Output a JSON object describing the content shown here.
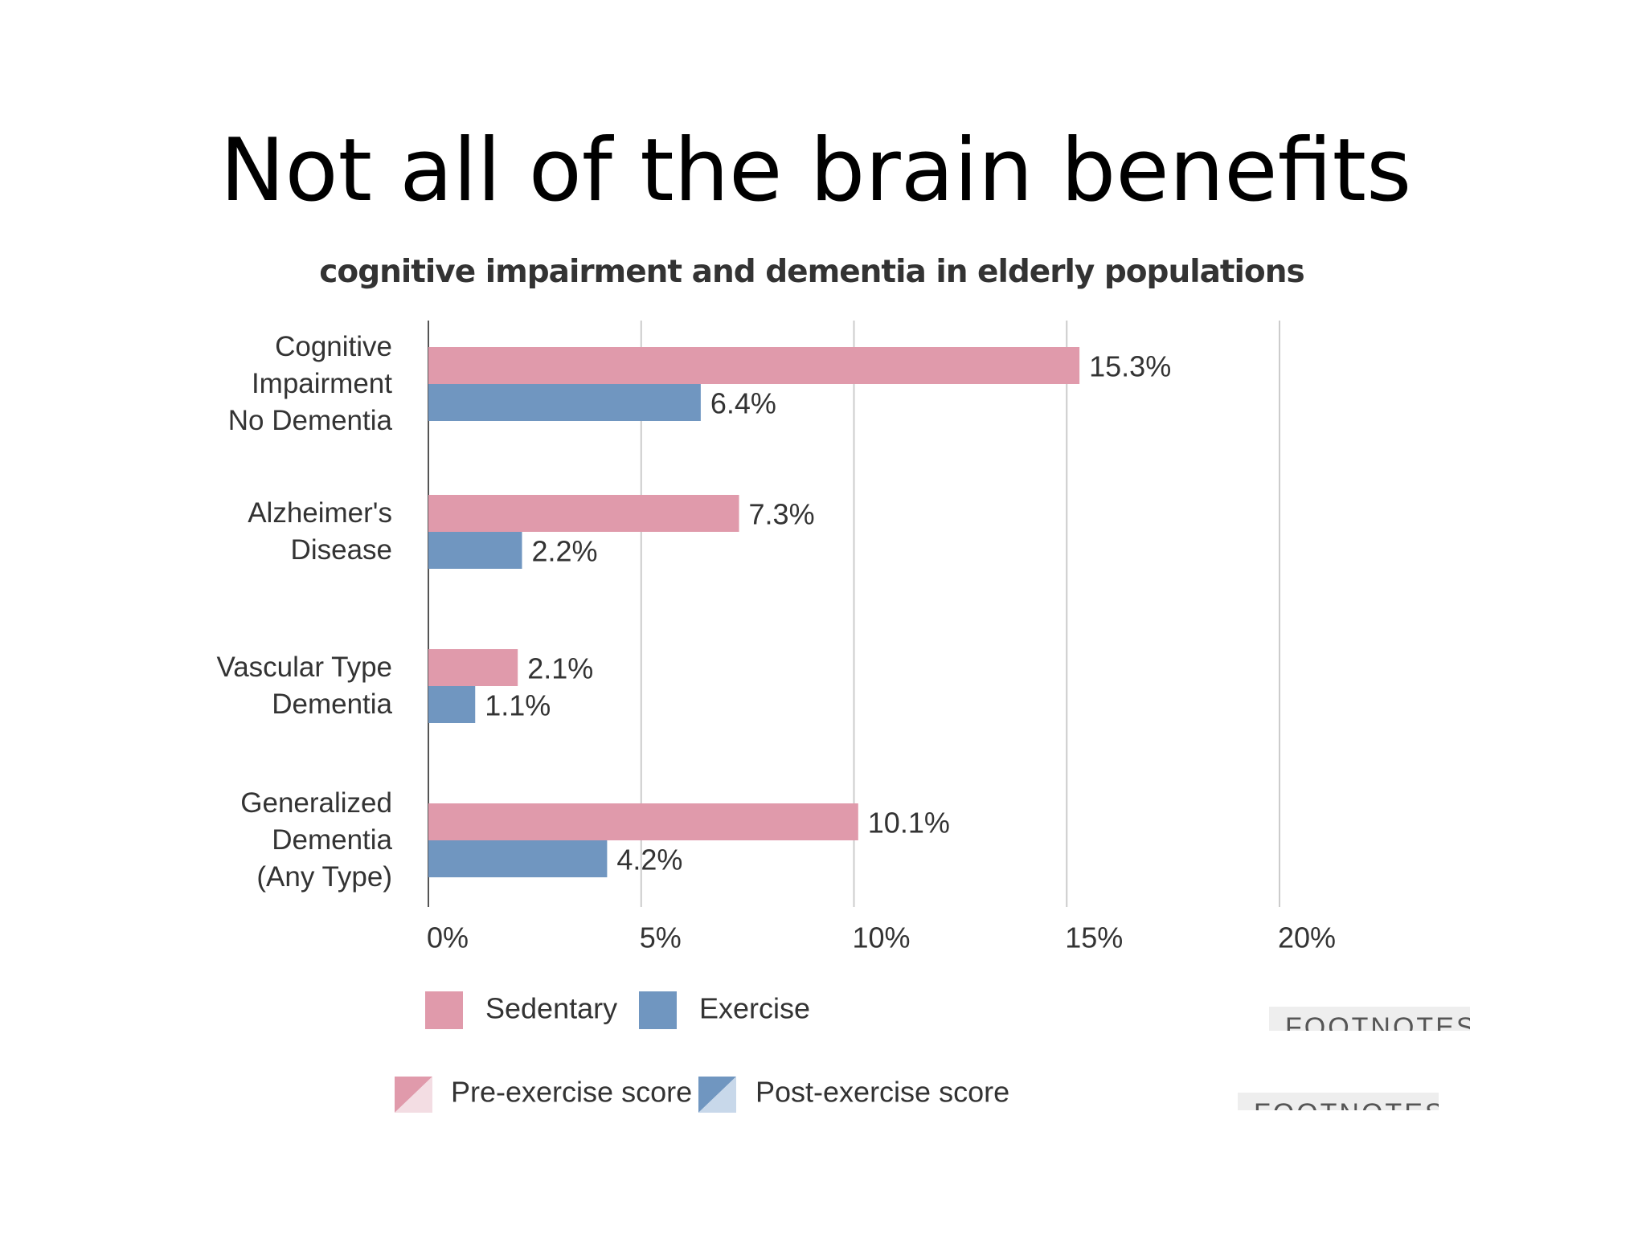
{
  "chart_data": {
    "type": "bar",
    "orientation": "horizontal",
    "title": "Not all of the brain benefits",
    "subtitle": "cognitive impairment and dementia in elderly populations",
    "categories": [
      "Cognitive\nImpairment\nNo Dementia",
      "Alzheimer's\nDisease",
      "Vascular Type\nDementia",
      "Generalized\nDementia\n(Any Type)"
    ],
    "series": [
      {
        "name": "Sedentary",
        "color": "#e09aab",
        "values": [
          15.3,
          7.3,
          2.1,
          10.1
        ],
        "value_labels": [
          "15.3%",
          "7.3%",
          "2.1%",
          "10.1%"
        ]
      },
      {
        "name": "Exercise",
        "color": "#7096c0",
        "values": [
          6.4,
          2.2,
          1.1,
          4.2
        ],
        "value_labels": [
          "6.4%",
          "2.2%",
          "1.1%",
          "4.2%"
        ]
      }
    ],
    "xlim": [
      0,
      20
    ],
    "xticks": [
      {
        "value": 0,
        "label": "0%"
      },
      {
        "value": 5,
        "label": "5%"
      },
      {
        "value": 10,
        "label": "10%"
      },
      {
        "value": 15,
        "label": "15%"
      },
      {
        "value": 20,
        "label": "20%"
      }
    ],
    "grid": true,
    "secondary_legend": [
      "Pre-exercise score",
      "Post-exercise score"
    ],
    "footnotes": [
      "FOOTNOTES",
      "FOOTNOTES"
    ]
  }
}
